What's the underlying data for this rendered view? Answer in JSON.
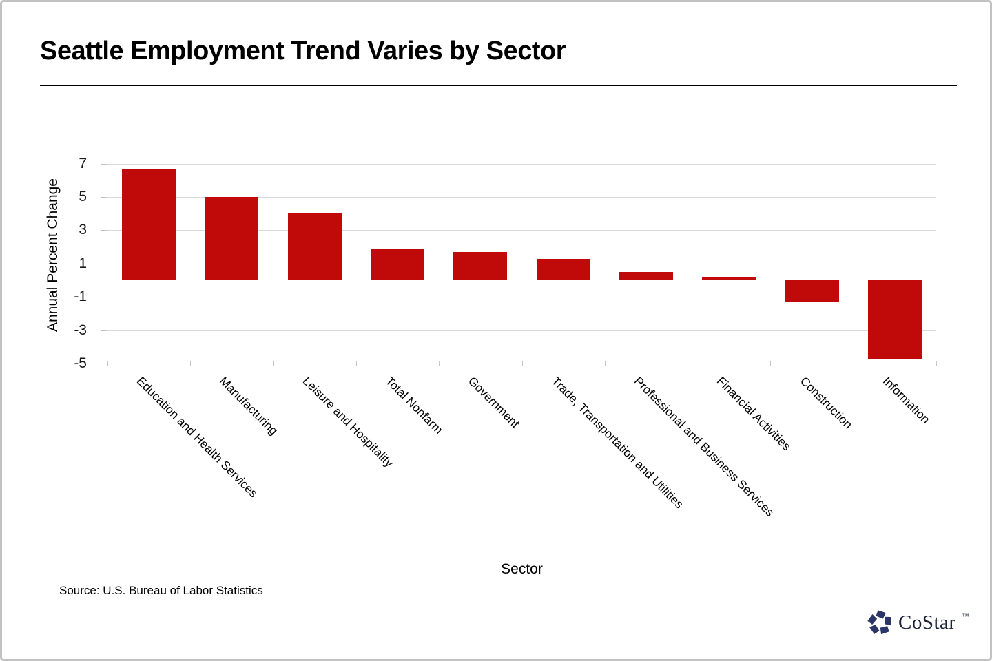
{
  "header": {
    "title": "Seattle Employment Trend Varies by Sector"
  },
  "chart_data": {
    "type": "bar",
    "title": "Seattle Employment Trend Varies by Sector",
    "categories": [
      "Education and Health Services",
      "Manufacturing",
      "Leisure and Hospitality",
      "Total Nonfarm",
      "Government",
      "Trade, Transportation and Utilities",
      "Professional and Business Services",
      "Financial Activities",
      "Construction",
      "Information"
    ],
    "values": [
      6.7,
      5.0,
      4.0,
      1.9,
      1.7,
      1.3,
      0.5,
      0.2,
      -1.3,
      -4.7
    ],
    "xlabel": "Sector",
    "ylabel": "Annual Percent Change",
    "yticks": [
      7,
      5,
      3,
      1,
      -1,
      -3,
      -5
    ],
    "ylim": [
      -5,
      7.5
    ],
    "grid": true,
    "legend": false,
    "bar_color": "#c00a0a",
    "gridline_color": "#d9d9d9"
  },
  "footer": {
    "source": "Source: U.S. Bureau of Labor Statistics",
    "logo_text": "CoStar",
    "logo_tm": "TM",
    "logo_color": "#2b3566"
  }
}
